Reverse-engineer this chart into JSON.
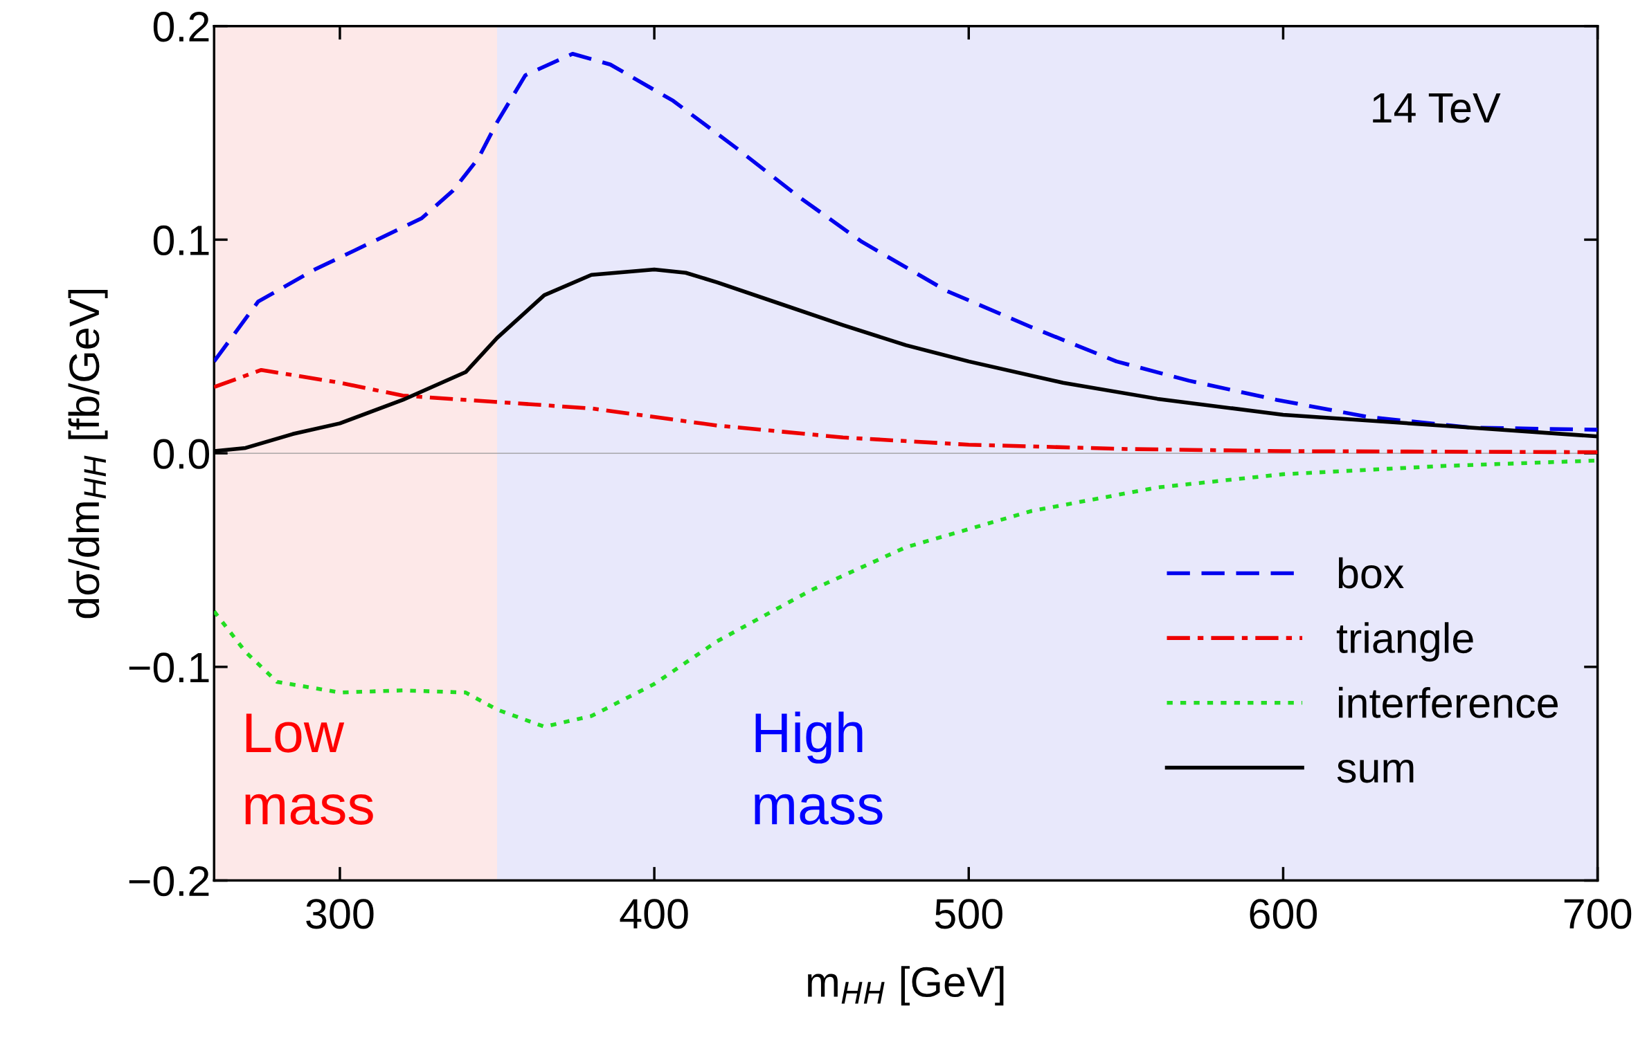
{
  "chart_data": {
    "type": "line",
    "xlabel": "m$_{HH}$ [GeV]",
    "ylabel": "dσ/dm$_{HH}$ [fb/GeV]",
    "xlim": [
      260,
      700
    ],
    "xticks": [
      300,
      400,
      500,
      600,
      700
    ],
    "ylim": [
      -0.2,
      0.2
    ],
    "yticks": [
      {
        "value": -0.2,
        "label": "−0.2"
      },
      {
        "value": -0.1,
        "label": "−0.1"
      },
      {
        "value": 0,
        "label": "0.0"
      },
      {
        "value": 0.1,
        "label": "0.1"
      },
      {
        "value": 0.2,
        "label": "0.2"
      }
    ],
    "grid": false,
    "legend": "bottom right",
    "series": [
      {
        "name": "box",
        "color": "#0000ee",
        "line_style": "dashed",
        "x": [
          260,
          274,
          292,
          309,
          326,
          336,
          344,
          350,
          359,
          374,
          386,
          406,
          426,
          446,
          466,
          493,
          520,
          547,
          570,
          598,
          627,
          660,
          700
        ],
        "values": [
          0.043,
          0.071,
          0.086,
          0.098,
          0.11,
          0.123,
          0.138,
          0.155,
          0.177,
          0.187,
          0.182,
          0.165,
          0.143,
          0.12,
          0.099,
          0.076,
          0.059,
          0.043,
          0.034,
          0.025,
          0.017,
          0.012,
          0.011
        ]
      },
      {
        "name": "triangle",
        "color": "#ee0000",
        "line_style": "dashdot",
        "x": [
          260,
          275,
          300,
          320,
          350,
          380,
          420,
          460,
          500,
          550,
          600,
          700
        ],
        "values": [
          0.031,
          0.039,
          0.033,
          0.027,
          0.024,
          0.021,
          0.013,
          0.0074,
          0.004,
          0.002,
          0.001,
          0.0005
        ]
      },
      {
        "name": "interference",
        "color": "#22dd22",
        "line_style": "dotted",
        "x": [
          260,
          270,
          280,
          300,
          320,
          340,
          350,
          365,
          380,
          400,
          420,
          450,
          480,
          520,
          560,
          600,
          650,
          700
        ],
        "values": [
          -0.074,
          -0.093,
          -0.107,
          -0.112,
          -0.111,
          -0.112,
          -0.12,
          -0.128,
          -0.123,
          -0.108,
          -0.088,
          -0.064,
          -0.044,
          -0.027,
          -0.016,
          -0.0098,
          -0.006,
          -0.0034
        ]
      },
      {
        "name": "sum",
        "color": "#000000",
        "line_style": "solid",
        "x": [
          260,
          270,
          285,
          300,
          320,
          340,
          350,
          365,
          380,
          400,
          410,
          420,
          440,
          460,
          480,
          500,
          530,
          560,
          600,
          650,
          700
        ],
        "values": [
          0.001,
          0.0025,
          0.009,
          0.014,
          0.025,
          0.038,
          0.054,
          0.074,
          0.0835,
          0.086,
          0.0845,
          0.08,
          0.07,
          0.06,
          0.0506,
          0.043,
          0.033,
          0.0255,
          0.018,
          0.013,
          0.0079
        ]
      }
    ],
    "bands": [
      {
        "axis": "x",
        "from": 260,
        "to": 350,
        "label": "Low\nmass",
        "color": "#fde8e8"
      },
      {
        "axis": "x",
        "from": 350,
        "to": 700,
        "label": "High\nmass",
        "color": "#e8e8fb"
      }
    ],
    "ref_lines": [
      {
        "axis": "y",
        "value": 0,
        "color": "#999999"
      }
    ],
    "annotations": [
      "14 TeV"
    ]
  }
}
